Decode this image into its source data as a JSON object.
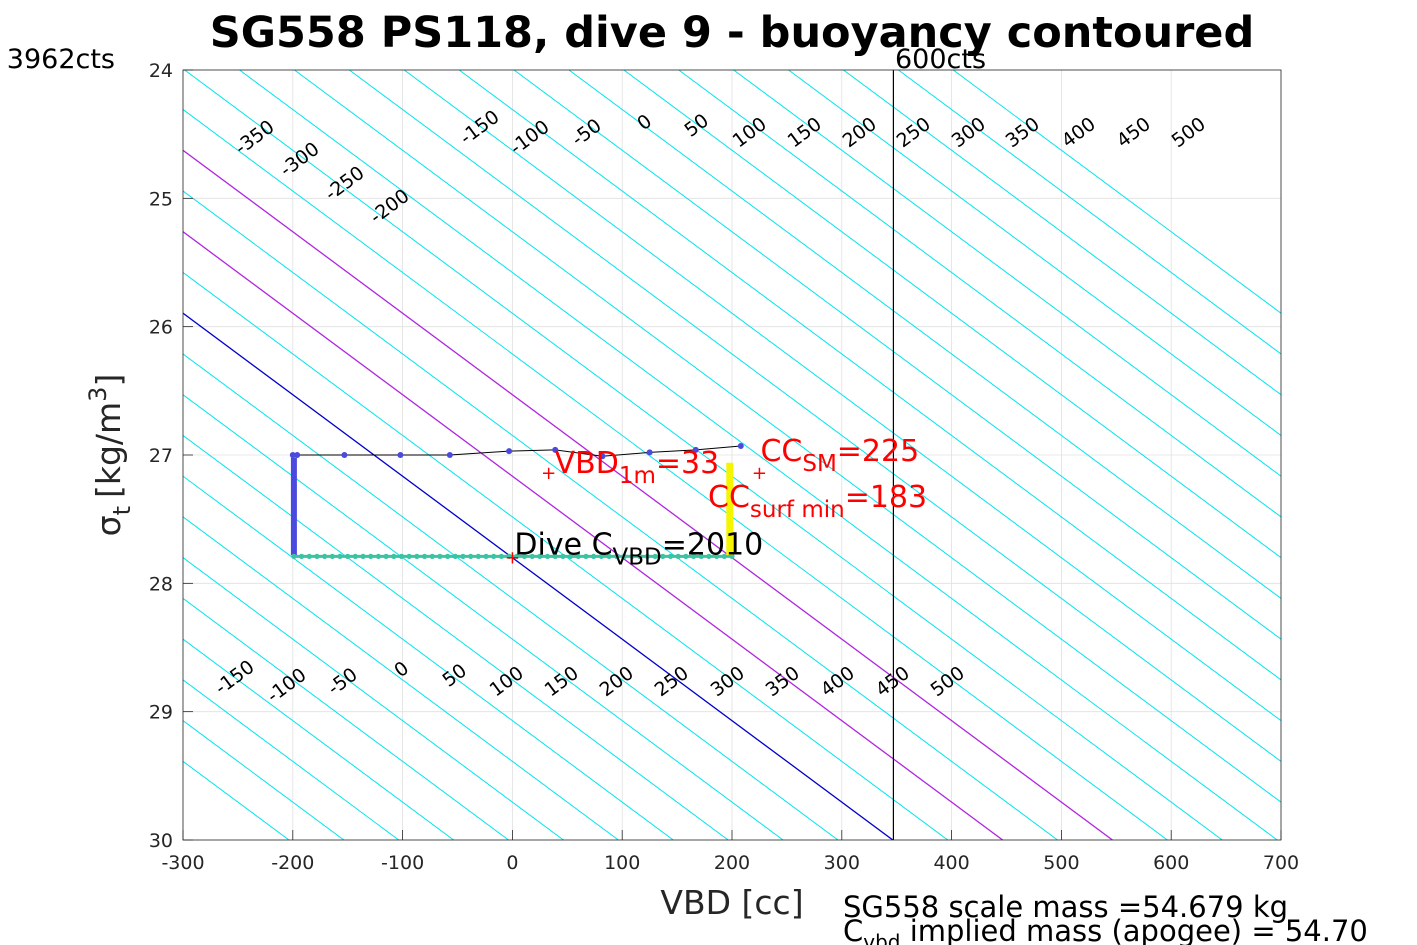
{
  "chart_data": {
    "type": "line",
    "title": "SG558 PS118, dive 9 - buoyancy contoured",
    "xlabel": "VBD [cc]",
    "ylabel_symbol": "σ",
    "ylabel_sub": "t",
    "ylabel_units": "[kg/m",
    "ylabel_sup": "3",
    "ylabel_close": "]",
    "xlim": [
      -300,
      700
    ],
    "ylim": [
      24,
      30
    ],
    "y_reversed": true,
    "grid": true,
    "xticks": [
      -300,
      -200,
      -100,
      0,
      100,
      200,
      300,
      400,
      500,
      600,
      700
    ],
    "yticks": [
      24,
      25,
      26,
      27,
      28,
      29,
      30
    ],
    "xtick_labels": [
      "-300",
      "-200",
      "-100",
      "0",
      "100",
      "200",
      "300",
      "400",
      "500",
      "600",
      "700"
    ],
    "ytick_labels": [
      "24",
      "25",
      "26",
      "27",
      "28",
      "29",
      "30"
    ],
    "vertical_line_x": 347,
    "left_limit_label": "3962cts",
    "right_limit_label": "600cts",
    "contour_slope_cc_per_sigma": 157.5,
    "contours": [
      -550,
      -500,
      -450,
      -400,
      -350,
      -300,
      -250,
      -200,
      -150,
      -100,
      -50,
      0,
      50,
      100,
      150,
      200,
      250,
      300,
      350,
      400,
      450,
      500,
      550,
      600,
      650,
      700,
      750,
      800,
      850,
      900,
      950,
      1000
    ],
    "contour_colors": {
      "default": "#00e5ee",
      "zero": "#0000cc",
      "highlight": "#b026e0"
    },
    "highlight_contours": [
      100,
      200
    ],
    "top_contour_labels": [
      {
        "v": -350,
        "text": "-350",
        "x": 255,
        "y": 138
      },
      {
        "v": -300,
        "text": "-300",
        "x": 300,
        "y": 160
      },
      {
        "v": -250,
        "text": "-250",
        "x": 345,
        "y": 184
      },
      {
        "v": -200,
        "text": "-200",
        "x": 390,
        "y": 207
      },
      {
        "v": -150,
        "text": "-150",
        "x": 480,
        "y": 128
      },
      {
        "v": -100,
        "text": "-100",
        "x": 530,
        "y": 138
      },
      {
        "v": -50,
        "text": "-50",
        "x": 587,
        "y": 133
      },
      {
        "v": 0,
        "text": "0",
        "x": 645,
        "y": 123
      },
      {
        "v": 50,
        "text": "50",
        "x": 697,
        "y": 126
      },
      {
        "v": 100,
        "text": "100",
        "x": 750,
        "y": 133
      },
      {
        "v": 150,
        "text": "150",
        "x": 805,
        "y": 133
      },
      {
        "v": 200,
        "text": "200",
        "x": 860,
        "y": 133
      },
      {
        "v": 250,
        "text": "250",
        "x": 914,
        "y": 133
      },
      {
        "v": 300,
        "text": "300",
        "x": 969,
        "y": 133
      },
      {
        "v": 350,
        "text": "350",
        "x": 1023,
        "y": 133
      },
      {
        "v": 400,
        "text": "400",
        "x": 1079,
        "y": 133
      },
      {
        "v": 450,
        "text": "450",
        "x": 1134,
        "y": 133
      },
      {
        "v": 500,
        "text": "500",
        "x": 1189,
        "y": 133
      }
    ],
    "bottom_contour_labels": [
      {
        "v": -150,
        "text": "-150",
        "x": 235,
        "y": 678
      },
      {
        "v": -100,
        "text": "-100",
        "x": 287,
        "y": 686
      },
      {
        "v": -50,
        "text": "-50",
        "x": 343,
        "y": 682
      },
      {
        "v": 0,
        "text": "0",
        "x": 402,
        "y": 670
      },
      {
        "v": 50,
        "text": "50",
        "x": 455,
        "y": 676
      },
      {
        "v": 100,
        "text": "100",
        "x": 507,
        "y": 682
      },
      {
        "v": 150,
        "text": "150",
        "x": 562,
        "y": 682
      },
      {
        "v": 200,
        "text": "200",
        "x": 617,
        "y": 682
      },
      {
        "v": 250,
        "text": "250",
        "x": 672,
        "y": 682
      },
      {
        "v": 300,
        "text": "300",
        "x": 728,
        "y": 682
      },
      {
        "v": 350,
        "text": "350",
        "x": 783,
        "y": 682
      },
      {
        "v": 400,
        "text": "400",
        "x": 838,
        "y": 682
      },
      {
        "v": 450,
        "text": "450",
        "x": 893,
        "y": 682
      },
      {
        "v": 500,
        "text": "500",
        "x": 948,
        "y": 682
      }
    ],
    "series": [
      {
        "name": "",
        "color": "#4a4adf",
        "points": [
          [
            -200,
            27.0
          ],
          [
            -196,
            27.0
          ],
          [
            -153,
            27.0
          ],
          [
            -102,
            27.0
          ],
          [
            -57,
            27.0
          ],
          [
            -3,
            26.97
          ],
          [
            39,
            26.96
          ],
          [
            82,
            27.01
          ],
          [
            125,
            26.98
          ],
          [
            167,
            26.96
          ],
          [
            208,
            26.93
          ]
        ]
      },
      {
        "name": "",
        "color": "#4a4adf",
        "points": [
          [
            -199,
            27.02
          ],
          [
            -199,
            27.1
          ],
          [
            -199,
            27.2
          ],
          [
            -199,
            27.3
          ],
          [
            -199,
            27.4
          ],
          [
            -199,
            27.5
          ],
          [
            -199,
            27.6
          ],
          [
            -199,
            27.7
          ],
          [
            -199,
            27.78
          ]
        ]
      },
      {
        "name": "",
        "color": "#3bc3a2",
        "points": [
          [
            -199,
            27.79
          ],
          [
            200,
            27.79
          ]
        ]
      },
      {
        "name": "",
        "color": "#f5f500",
        "points": [
          [
            198,
            27.06
          ],
          [
            198,
            27.78
          ]
        ]
      }
    ],
    "markers": [
      {
        "x": 33,
        "y": 27.14,
        "label": "VBD",
        "sub": "1m",
        "rest": "=33"
      },
      {
        "x": 225,
        "y": 27.14,
        "label": "CC",
        "sub": "SM",
        "rest": "=225"
      },
      {
        "x": 0,
        "y": 27.8,
        "label": "Dive C",
        "sub": "VBD",
        "rest": "=2010"
      }
    ],
    "annotation_surf": {
      "label": "CC",
      "sub": "surf min",
      "rest": "=183"
    },
    "footer_mass": "SG558 scale mass =54.679 kg",
    "footer_implied_prefix": "C",
    "footer_implied_sub": "vbd",
    "footer_implied_rest": " implied mass (apogee) = 54.70"
  }
}
